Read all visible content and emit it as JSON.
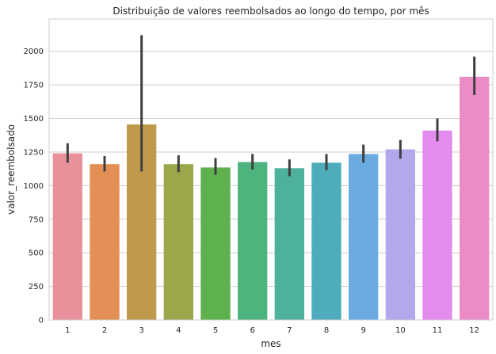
{
  "chart_data": {
    "type": "bar",
    "title": "Distribuição de valores reembolsados ao longo do tempo, por mês",
    "xlabel": "mes",
    "ylabel": "valor_reembolsado",
    "categories": [
      "1",
      "2",
      "3",
      "4",
      "5",
      "6",
      "7",
      "8",
      "9",
      "10",
      "11",
      "12"
    ],
    "values": [
      1240,
      1160,
      1455,
      1160,
      1135,
      1175,
      1130,
      1170,
      1235,
      1270,
      1410,
      1810
    ],
    "error_low": [
      1170,
      1105,
      1105,
      1100,
      1080,
      1120,
      1070,
      1115,
      1170,
      1200,
      1330,
      1675
    ],
    "error_high": [
      1315,
      1220,
      2120,
      1225,
      1205,
      1235,
      1195,
      1235,
      1305,
      1340,
      1500,
      1960
    ],
    "colors": [
      "#e8919b",
      "#e38f55",
      "#bf9a4c",
      "#9ca64a",
      "#5eb14c",
      "#4db47d",
      "#4eb19c",
      "#4eacbc",
      "#6aabe1",
      "#b4a7ec",
      "#e38ced",
      "#ec8cc6"
    ],
    "ylim": [
      0,
      2240
    ],
    "yticks": [
      0,
      250,
      500,
      750,
      1000,
      1250,
      1500,
      1750,
      2000
    ],
    "grid": true,
    "legend": "none"
  }
}
